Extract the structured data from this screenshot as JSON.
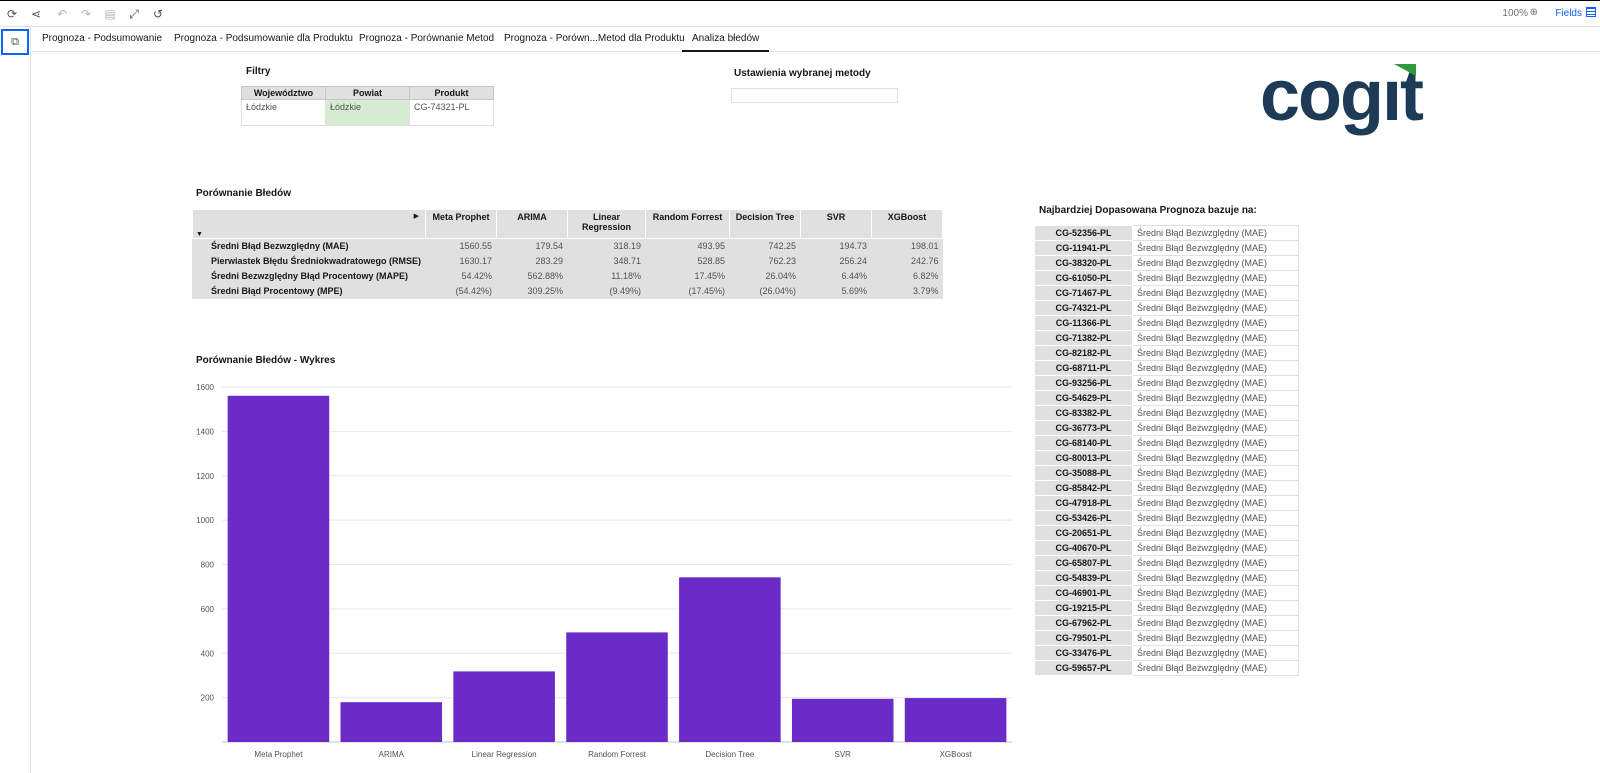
{
  "toolbar": {
    "zoom": "100%",
    "fields_label": "Fields"
  },
  "tabs": [
    {
      "label": "Prognoza - Podsumowanie"
    },
    {
      "label": "Prognoza - Podsumowanie dla Produktu"
    },
    {
      "label": "Prognoza  - Porównanie Metod"
    },
    {
      "label": "Prognoza  - Porówn...Metod dla Produktu"
    },
    {
      "label": "Analiza błedów"
    }
  ],
  "filters": {
    "title": "Filtry",
    "headers": [
      "Województwo",
      "Powiat",
      "Produkt"
    ],
    "values": [
      "Łódzkie",
      "Łódzkie",
      "CG-74321-PL"
    ]
  },
  "method_settings": {
    "title": "Ustawienia wybranej metody"
  },
  "logo": {
    "text": "cogit",
    "colors": {
      "text": "#1d3b56",
      "accent": "#2e9a3d"
    }
  },
  "comparison": {
    "title": "Porównanie Błedów",
    "columns": [
      "Meta Prophet",
      "ARIMA",
      "Linear Regression",
      "Random Forrest",
      "Decision Tree",
      "SVR",
      "XGBoost"
    ],
    "rows": [
      {
        "label": "Średni Błąd Bezwzględny (MAE)",
        "values": [
          "1560.55",
          "179.54",
          "318.19",
          "493.95",
          "742.25",
          "194.73",
          "198.01"
        ]
      },
      {
        "label": "Pierwiastek Błędu Średniokwadratowego (RMSE)",
        "values": [
          "1630.17",
          "283.29",
          "348.71",
          "528.85",
          "762.23",
          "256.24",
          "242.76"
        ]
      },
      {
        "label": "Średni Bezwzględny Błąd Procentowy (MAPE)",
        "values": [
          "54.42%",
          "562.88%",
          "11.18%",
          "17.45%",
          "26.04%",
          "6.44%",
          "6.82%"
        ]
      },
      {
        "label": "Średni Błąd Procentowy (MPE)",
        "values": [
          "(54.42%)",
          "309.25%",
          "(9.49%)",
          "(17.45%)",
          "(26.04%)",
          "5.69%",
          "3.79%"
        ]
      }
    ]
  },
  "best_fit": {
    "title": "Najbardziej Dopasowana Prognoza bazuje na:",
    "rows": [
      {
        "code": "CG-52356-PL",
        "metric": "Średni Błąd Bezwzględny (MAE)"
      },
      {
        "code": "CG-11941-PL",
        "metric": "Średni Błąd Bezwzględny (MAE)"
      },
      {
        "code": "CG-38320-PL",
        "metric": "Średni Błąd Bezwzględny (MAE)"
      },
      {
        "code": "CG-61050-PL",
        "metric": "Średni Błąd Bezwzględny (MAE)"
      },
      {
        "code": "CG-71467-PL",
        "metric": "Średni Błąd Bezwzględny (MAE)"
      },
      {
        "code": "CG-74321-PL",
        "metric": "Średni Błąd Bezwzględny (MAE)"
      },
      {
        "code": "CG-11366-PL",
        "metric": "Średni Błąd Bezwzględny (MAE)"
      },
      {
        "code": "CG-71382-PL",
        "metric": "Średni Błąd Bezwzględny (MAE)"
      },
      {
        "code": "CG-82182-PL",
        "metric": "Średni Błąd Bezwzględny (MAE)"
      },
      {
        "code": "CG-68711-PL",
        "metric": "Średni Błąd Bezwzględny (MAE)"
      },
      {
        "code": "CG-93256-PL",
        "metric": "Średni Błąd Bezwzględny (MAE)"
      },
      {
        "code": "CG-54629-PL",
        "metric": "Średni Błąd Bezwzględny (MAE)"
      },
      {
        "code": "CG-83382-PL",
        "metric": "Średni Błąd Bezwzględny (MAE)"
      },
      {
        "code": "CG-36773-PL",
        "metric": "Średni Błąd Bezwzględny (MAE)"
      },
      {
        "code": "CG-68140-PL",
        "metric": "Średni Błąd Bezwzględny (MAE)"
      },
      {
        "code": "CG-80013-PL",
        "metric": "Średni Błąd Bezwzględny (MAE)"
      },
      {
        "code": "CG-35088-PL",
        "metric": "Średni Błąd Bezwzględny (MAE)"
      },
      {
        "code": "CG-85842-PL",
        "metric": "Średni Błąd Bezwzględny (MAE)"
      },
      {
        "code": "CG-47918-PL",
        "metric": "Średni Błąd Bezwzględny (MAE)"
      },
      {
        "code": "CG-53426-PL",
        "metric": "Średni Błąd Bezwzględny (MAE)"
      },
      {
        "code": "CG-20651-PL",
        "metric": "Średni Błąd Bezwzględny (MAE)"
      },
      {
        "code": "CG-40670-PL",
        "metric": "Średni Błąd Bezwzględny (MAE)"
      },
      {
        "code": "CG-65807-PL",
        "metric": "Średni Błąd Bezwzględny (MAE)"
      },
      {
        "code": "CG-54839-PL",
        "metric": "Średni Błąd Bezwzględny (MAE)"
      },
      {
        "code": "CG-46901-PL",
        "metric": "Średni Błąd Bezwzględny (MAE)"
      },
      {
        "code": "CG-19215-PL",
        "metric": "Średni Błąd Bezwzględny (MAE)"
      },
      {
        "code": "CG-67962-PL",
        "metric": "Średni Błąd Bezwzględny (MAE)"
      },
      {
        "code": "CG-79501-PL",
        "metric": "Średni Błąd Bezwzględny (MAE)"
      },
      {
        "code": "CG-33476-PL",
        "metric": "Średni Błąd Bezwzględny (MAE)"
      },
      {
        "code": "CG-59657-PL",
        "metric": "Średni Błąd Bezwzględny (MAE)"
      }
    ]
  },
  "chart_title": "Porównanie Błedów - Wykres",
  "chart_data": {
    "type": "bar",
    "categories": [
      "Meta Prophet",
      "ARIMA",
      "Linear Regression",
      "Random Forrest",
      "Decision Tree",
      "SVR",
      "XGBoost"
    ],
    "values": [
      1560.55,
      179.54,
      318.19,
      493.95,
      742.25,
      194.73,
      198.01
    ],
    "title": "",
    "xlabel": "",
    "ylabel": "",
    "ylim": [
      0,
      1600
    ],
    "yticks": [
      200,
      400,
      600,
      800,
      1000,
      1200,
      1400,
      1600
    ],
    "grid": true,
    "bar_color": "#6a2bc9"
  }
}
